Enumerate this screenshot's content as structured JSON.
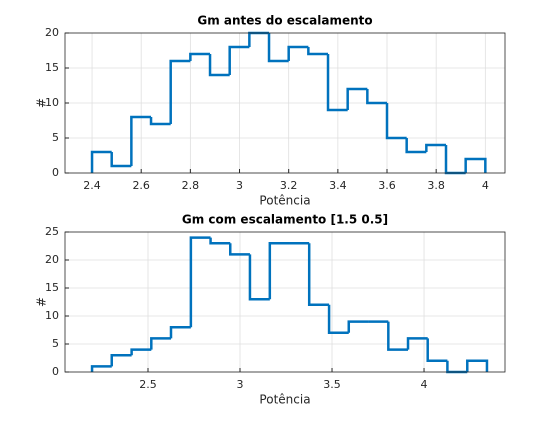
{
  "chart_data": [
    {
      "type": "histogram",
      "title": "Gm antes do escalamento",
      "xlabel": "Potência",
      "ylabel": "#",
      "bins": [
        2.4,
        2.48,
        2.56,
        2.64,
        2.72,
        2.8,
        2.88,
        2.96,
        3.04,
        3.12,
        3.2,
        3.28,
        3.36,
        3.44,
        3.52,
        3.6,
        3.68,
        3.76,
        3.84,
        3.92,
        4.0
      ],
      "values": [
        3,
        1,
        8,
        7,
        16,
        17,
        14,
        18,
        20,
        16,
        18,
        17,
        9,
        12,
        10,
        5,
        3,
        4,
        0,
        2
      ],
      "color": "#0072bd",
      "xlim": [
        2.29,
        4.08
      ],
      "ylim": [
        0,
        20
      ],
      "xticks": [
        2.4,
        2.6,
        2.8,
        3,
        3.2,
        3.4,
        3.6,
        3.8,
        4
      ],
      "yticks": [
        0,
        5,
        10,
        15,
        20
      ],
      "grid": true
    },
    {
      "type": "histogram",
      "title": "Gm com escalamento [1.5 0.5]",
      "xlabel": "Potência",
      "ylabel": "#",
      "bins": [
        2.196,
        2.303,
        2.411,
        2.518,
        2.625,
        2.733,
        2.84,
        2.947,
        3.054,
        3.162,
        3.269,
        3.376,
        3.484,
        3.591,
        3.698,
        3.806,
        3.913,
        4.02,
        4.127,
        4.235,
        4.342
      ],
      "values": [
        1,
        3,
        4,
        6,
        8,
        24,
        23,
        21,
        13,
        23,
        23,
        12,
        7,
        9,
        9,
        4,
        6,
        2,
        0,
        2
      ],
      "color": "#0072bd",
      "xlim": [
        2.049,
        4.44
      ],
      "ylim": [
        0,
        25
      ],
      "xticks": [
        2.5,
        3,
        3.5,
        4
      ],
      "yticks": [
        0,
        5,
        10,
        15,
        20,
        25
      ],
      "grid": true
    }
  ]
}
